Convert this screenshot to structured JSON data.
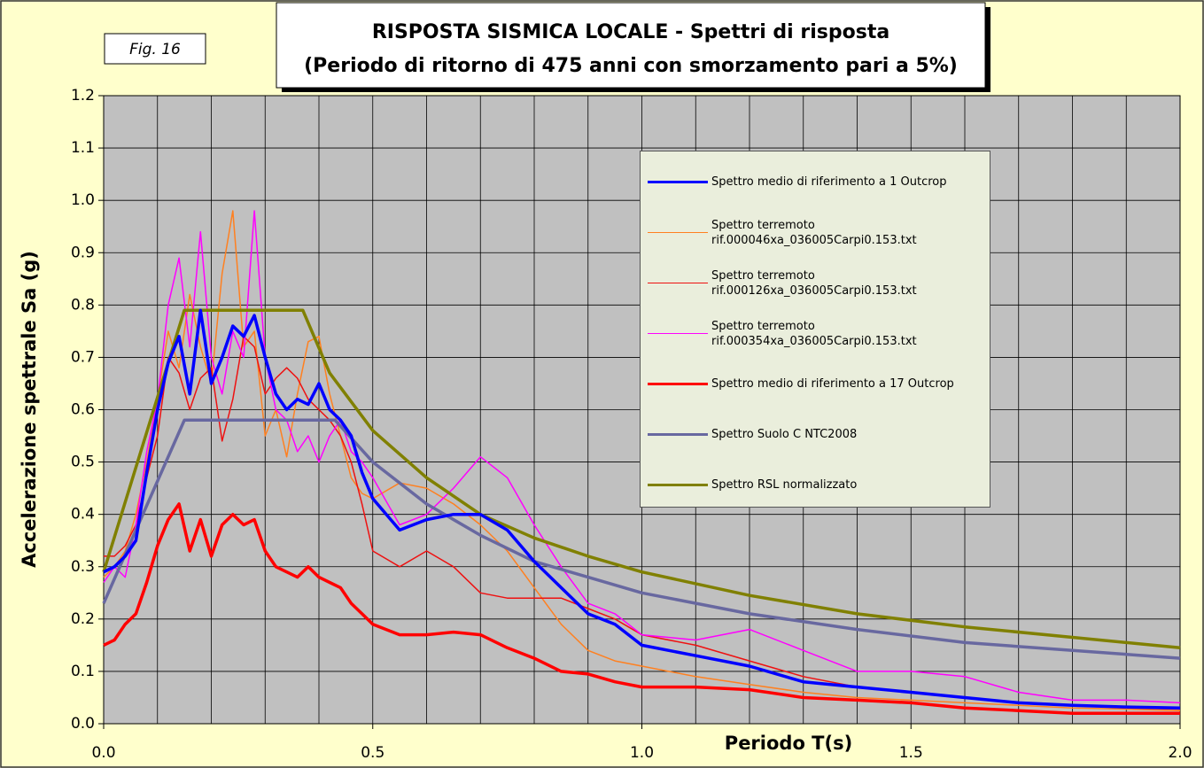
{
  "chart_data": {
    "type": "line",
    "title": "RISPOSTA SISMICA LOCALE - Spettri di risposta",
    "subtitle": "(Periodo di ritorno di 475 anni con smorzamento pari a 5%)",
    "annotation": "Fig. 16",
    "x_label": "Periodo T(s)",
    "y_label": "Accelerazione spettrale Sa (g)",
    "xlim": [
      0,
      2
    ],
    "ylim": [
      0,
      1.2
    ],
    "xticks": [
      {
        "value": 0,
        "label": "0.0"
      },
      0.5,
      {
        "value": 1,
        "label": "1.0"
      },
      1.5,
      {
        "value": 2,
        "label": "2.0"
      }
    ],
    "yticks": [
      {
        "value": 0,
        "label": "0.0"
      },
      0.1,
      0.2,
      0.3,
      0.4,
      0.5,
      0.6,
      0.7,
      0.8,
      0.9,
      {
        "value": 1,
        "label": "1.0"
      },
      1.1,
      1.2
    ],
    "xgrid": [
      0.1,
      0.2,
      0.3,
      0.4,
      0.5,
      0.6,
      0.7,
      0.8,
      0.9,
      1.0,
      1.1,
      1.2,
      1.3,
      1.4,
      1.5,
      1.6,
      1.7,
      1.8,
      1.9
    ],
    "grid": true,
    "series": [
      {
        "name": "Spettro medio di riferimento a 1 Outcrop",
        "color": "#0000ff",
        "width": 3.5,
        "x": [
          0,
          0.02,
          0.04,
          0.06,
          0.08,
          0.1,
          0.12,
          0.14,
          0.16,
          0.18,
          0.2,
          0.22,
          0.24,
          0.26,
          0.28,
          0.3,
          0.32,
          0.34,
          0.36,
          0.38,
          0.4,
          0.42,
          0.44,
          0.46,
          0.48,
          0.5,
          0.55,
          0.6,
          0.65,
          0.7,
          0.75,
          0.8,
          0.85,
          0.9,
          0.95,
          1.0,
          1.1,
          1.2,
          1.3,
          1.4,
          1.5,
          1.6,
          1.7,
          1.8,
          1.9,
          2.0
        ],
        "values": [
          0.29,
          0.3,
          0.32,
          0.35,
          0.48,
          0.6,
          0.69,
          0.74,
          0.63,
          0.79,
          0.65,
          0.7,
          0.76,
          0.74,
          0.78,
          0.7,
          0.63,
          0.6,
          0.62,
          0.61,
          0.65,
          0.6,
          0.58,
          0.55,
          0.48,
          0.43,
          0.37,
          0.39,
          0.4,
          0.4,
          0.37,
          0.31,
          0.26,
          0.21,
          0.19,
          0.15,
          0.13,
          0.11,
          0.08,
          0.07,
          0.06,
          0.05,
          0.04,
          0.035,
          0.032,
          0.03
        ]
      },
      {
        "name": "Spettro terremoto rif.000046xa_036005Carpi0.153.txt",
        "color": "#ff8020",
        "width": 1.5,
        "x": [
          0,
          0.02,
          0.04,
          0.06,
          0.08,
          0.1,
          0.12,
          0.14,
          0.16,
          0.18,
          0.2,
          0.22,
          0.24,
          0.26,
          0.28,
          0.3,
          0.32,
          0.34,
          0.36,
          0.38,
          0.4,
          0.42,
          0.44,
          0.46,
          0.48,
          0.5,
          0.55,
          0.6,
          0.65,
          0.7,
          0.75,
          0.8,
          0.85,
          0.9,
          0.95,
          1.0,
          1.1,
          1.2,
          1.3,
          1.4,
          1.5,
          1.6,
          1.7,
          1.8,
          1.9,
          2.0
        ],
        "values": [
          0.28,
          0.3,
          0.33,
          0.4,
          0.5,
          0.62,
          0.75,
          0.68,
          0.82,
          0.72,
          0.65,
          0.86,
          0.98,
          0.72,
          0.75,
          0.55,
          0.6,
          0.51,
          0.63,
          0.73,
          0.74,
          0.63,
          0.55,
          0.47,
          0.44,
          0.43,
          0.46,
          0.45,
          0.42,
          0.38,
          0.33,
          0.26,
          0.19,
          0.14,
          0.12,
          0.11,
          0.09,
          0.075,
          0.06,
          0.05,
          0.045,
          0.04,
          0.035,
          0.03,
          0.028,
          0.025
        ]
      },
      {
        "name": "Spettro terremoto rif.000126xa_036005Carpi0.153.txt",
        "color": "#ee1111",
        "width": 1.5,
        "x": [
          0,
          0.02,
          0.04,
          0.06,
          0.08,
          0.1,
          0.12,
          0.14,
          0.16,
          0.18,
          0.2,
          0.22,
          0.24,
          0.26,
          0.28,
          0.3,
          0.32,
          0.34,
          0.36,
          0.38,
          0.4,
          0.42,
          0.44,
          0.46,
          0.48,
          0.5,
          0.55,
          0.6,
          0.65,
          0.7,
          0.75,
          0.8,
          0.85,
          0.9,
          0.95,
          1.0,
          1.1,
          1.2,
          1.3,
          1.4,
          1.5,
          1.6,
          1.7,
          1.8,
          1.9,
          2.0
        ],
        "values": [
          0.32,
          0.32,
          0.34,
          0.38,
          0.47,
          0.55,
          0.7,
          0.67,
          0.6,
          0.66,
          0.68,
          0.54,
          0.62,
          0.74,
          0.72,
          0.63,
          0.66,
          0.68,
          0.66,
          0.62,
          0.6,
          0.58,
          0.55,
          0.5,
          0.42,
          0.33,
          0.3,
          0.33,
          0.3,
          0.25,
          0.24,
          0.24,
          0.24,
          0.22,
          0.2,
          0.17,
          0.15,
          0.12,
          0.09,
          0.07,
          0.06,
          0.05,
          0.04,
          0.035,
          0.03,
          0.028
        ]
      },
      {
        "name": "Spettro terremoto rif.000354xa_036005Carpi0.153.txt",
        "color": "#ff00ff",
        "width": 1.5,
        "x": [
          0,
          0.02,
          0.04,
          0.06,
          0.08,
          0.1,
          0.12,
          0.14,
          0.16,
          0.18,
          0.2,
          0.22,
          0.24,
          0.26,
          0.28,
          0.3,
          0.32,
          0.34,
          0.36,
          0.38,
          0.4,
          0.42,
          0.44,
          0.46,
          0.48,
          0.5,
          0.55,
          0.6,
          0.65,
          0.7,
          0.75,
          0.8,
          0.85,
          0.9,
          0.95,
          1.0,
          1.1,
          1.2,
          1.3,
          1.4,
          1.5,
          1.6,
          1.7,
          1.8,
          1.9,
          2.0
        ],
        "values": [
          0.27,
          0.3,
          0.28,
          0.38,
          0.52,
          0.62,
          0.8,
          0.89,
          0.72,
          0.94,
          0.7,
          0.63,
          0.75,
          0.7,
          0.98,
          0.7,
          0.6,
          0.58,
          0.52,
          0.55,
          0.5,
          0.55,
          0.58,
          0.52,
          0.5,
          0.47,
          0.38,
          0.4,
          0.45,
          0.51,
          0.47,
          0.38,
          0.3,
          0.23,
          0.21,
          0.17,
          0.16,
          0.18,
          0.14,
          0.1,
          0.1,
          0.09,
          0.06,
          0.045,
          0.045,
          0.04
        ]
      },
      {
        "name": "Spettro medio di riferimento a 17 Outcrop",
        "color": "#ff0000",
        "width": 3.5,
        "x": [
          0,
          0.02,
          0.04,
          0.06,
          0.08,
          0.1,
          0.12,
          0.14,
          0.16,
          0.18,
          0.2,
          0.22,
          0.24,
          0.26,
          0.28,
          0.3,
          0.32,
          0.34,
          0.36,
          0.38,
          0.4,
          0.42,
          0.44,
          0.46,
          0.48,
          0.5,
          0.55,
          0.6,
          0.65,
          0.7,
          0.75,
          0.8,
          0.85,
          0.9,
          0.95,
          1.0,
          1.1,
          1.2,
          1.3,
          1.4,
          1.5,
          1.6,
          1.7,
          1.8,
          1.9,
          2.0
        ],
        "values": [
          0.15,
          0.16,
          0.19,
          0.21,
          0.27,
          0.34,
          0.39,
          0.42,
          0.33,
          0.39,
          0.32,
          0.38,
          0.4,
          0.38,
          0.39,
          0.33,
          0.3,
          0.29,
          0.28,
          0.3,
          0.28,
          0.27,
          0.26,
          0.23,
          0.21,
          0.19,
          0.17,
          0.17,
          0.175,
          0.17,
          0.145,
          0.125,
          0.1,
          0.095,
          0.08,
          0.07,
          0.07,
          0.065,
          0.05,
          0.045,
          0.04,
          0.03,
          0.025,
          0.02,
          0.02,
          0.02
        ]
      },
      {
        "name": "Spettro Suolo C NTC2008",
        "color": "#6868a0",
        "width": 3.5,
        "x": [
          0,
          0.15,
          0.43,
          0.5,
          0.6,
          0.7,
          0.8,
          0.9,
          1.0,
          1.2,
          1.4,
          1.6,
          1.8,
          2.0
        ],
        "values": [
          0.23,
          0.58,
          0.58,
          0.5,
          0.42,
          0.36,
          0.31,
          0.28,
          0.25,
          0.21,
          0.18,
          0.155,
          0.14,
          0.125
        ]
      },
      {
        "name": "Spettro RSL normalizzato",
        "color": "#808000",
        "width": 3.5,
        "x": [
          0,
          0.15,
          0.37,
          0.42,
          0.5,
          0.6,
          0.7,
          0.8,
          0.9,
          1.0,
          1.2,
          1.4,
          1.6,
          1.8,
          2.0
        ],
        "values": [
          0.29,
          0.79,
          0.79,
          0.67,
          0.56,
          0.47,
          0.4,
          0.355,
          0.32,
          0.29,
          0.245,
          0.21,
          0.185,
          0.165,
          0.145
        ]
      }
    ]
  }
}
